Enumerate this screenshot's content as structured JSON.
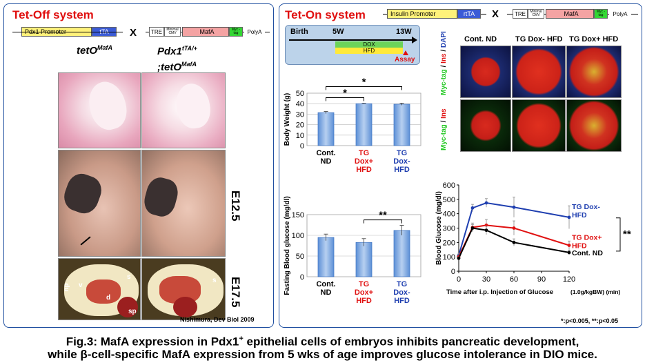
{
  "left_panel": {
    "title": "Tet-Off system",
    "construct1": {
      "promoter": "Pdx1 Promoter",
      "gene": "tTA"
    },
    "cross_symbol": "X",
    "construct2": {
      "tre": "TRE",
      "minimal": "Minimal CMV",
      "gene": "MafA",
      "tag": "Myc -tag",
      "polya": "PolyA"
    },
    "genotype1": {
      "base": "tetO",
      "sup": "MafA"
    },
    "genotype2_line1": {
      "base": "Pdx1",
      "sup": "tTA/+"
    },
    "genotype2_line2": {
      "base": ";tetO",
      "sup": "MafA"
    },
    "stage1": "E12.5",
    "stage2": "E17.5",
    "organ_labels": [
      "du",
      "v",
      "d",
      "s",
      "sp",
      "s"
    ],
    "citation": "Nishimura, Dev Biol 2009"
  },
  "right_panel": {
    "title": "Tet-On system",
    "construct1": {
      "promoter": "Insulin Promoter",
      "gene": "rtTA"
    },
    "cross_symbol": "X",
    "construct2": {
      "tre": "TRE",
      "minimal": "Minimal CMV",
      "gene": "MafA",
      "tag": "Myc -tag",
      "polya": "PolyA"
    },
    "timeline": {
      "birth": "Birth",
      "week5": "5W",
      "week13": "13W",
      "dox": "DOX",
      "hfd": "HFD",
      "assay": "Assay"
    },
    "histology": {
      "columns": [
        "Cont. ND",
        "TG Dox- HFD",
        "TG Dox+ HFD"
      ],
      "row1_label": {
        "myc": "Myc-tag",
        "slash1": " / ",
        "ins": "Ins",
        "slash2": " / ",
        "dapi": "DAPI"
      },
      "row2_label": {
        "myc": "Myc-tag",
        "slash": " / ",
        "ins": "Ins"
      }
    },
    "significance_note": "*:p<0.005, **:p<0.05"
  },
  "chart_data": [
    {
      "type": "bar",
      "ylabel": "Body Weight (g)",
      "ylim": [
        0,
        50
      ],
      "yticks": [
        0,
        10,
        20,
        30,
        40,
        50
      ],
      "categories": [
        {
          "lines": [
            "Cont.",
            "ND"
          ],
          "color": "#000000"
        },
        {
          "lines": [
            "TG",
            "Dox+",
            "HFD"
          ],
          "color": "#e01010"
        },
        {
          "lines": [
            "TG",
            "Dox-",
            "HFD"
          ],
          "color": "#1f3fb0"
        }
      ],
      "values": [
        31.5,
        40,
        39.5
      ],
      "errors": [
        1.0,
        0.4,
        1.0
      ],
      "significance": [
        {
          "from": 0,
          "to": 1,
          "label": "*"
        },
        {
          "from": 0,
          "to": 2,
          "label": "*"
        }
      ]
    },
    {
      "type": "bar",
      "ylabel": "Fasting Blood glucose (mg/dl)",
      "ylim": [
        0,
        150
      ],
      "yticks": [
        0,
        50,
        100,
        150
      ],
      "categories": [
        {
          "lines": [
            "Cont.",
            "ND"
          ],
          "color": "#000000"
        },
        {
          "lines": [
            "TG",
            "Dox+",
            "HFD"
          ],
          "color": "#e01010"
        },
        {
          "lines": [
            "TG",
            "Dox-",
            "HFD"
          ],
          "color": "#1f3fb0"
        }
      ],
      "values": [
        95,
        83,
        112
      ],
      "errors": [
        8,
        9,
        12
      ],
      "significance": [
        {
          "from": 1,
          "to": 2,
          "label": "**"
        }
      ]
    },
    {
      "type": "line",
      "ylabel": "Blood Glucose (mg/dl)",
      "xlabel": "Time after i.p. Injection of Glucose",
      "xlabel_unit": "(1.0g/kgBW) (min)",
      "xlim": [
        0,
        120
      ],
      "ylim": [
        0,
        600
      ],
      "xticks": [
        0,
        30,
        60,
        90,
        120
      ],
      "yticks": [
        0,
        100,
        200,
        300,
        400,
        500,
        600
      ],
      "x": [
        0,
        15,
        30,
        60,
        120
      ],
      "series": [
        {
          "name": "TG Dox- HFD",
          "label_lines": [
            "TG Dox-",
            "HFD"
          ],
          "color": "#1f3fb0",
          "values": [
            110,
            440,
            475,
            445,
            375
          ],
          "errors": [
            15,
            25,
            30,
            70,
            80
          ]
        },
        {
          "name": "TG Dox+ HFD",
          "label_lines": [
            "TG Dox+",
            "HFD"
          ],
          "color": "#e01010",
          "values": [
            100,
            305,
            320,
            300,
            180
          ],
          "errors": [
            15,
            30,
            40,
            50,
            30
          ]
        },
        {
          "name": "Cont. ND",
          "label_lines": [
            "Cont. ND"
          ],
          "color": "#000000",
          "values": [
            90,
            300,
            285,
            200,
            130
          ],
          "errors": [
            10,
            25,
            30,
            25,
            15
          ]
        }
      ],
      "significance": "**"
    }
  ],
  "caption": {
    "line1_a": "Fig.3: MafA expression in Pdx1",
    "line1_sup": "+",
    "line1_b": " epithelial cells of embryos inhibits pancreatic development,",
    "line2": "while β-cell-specific MafA expression from 5 wks of age improves glucose intolerance in DIO mice."
  }
}
